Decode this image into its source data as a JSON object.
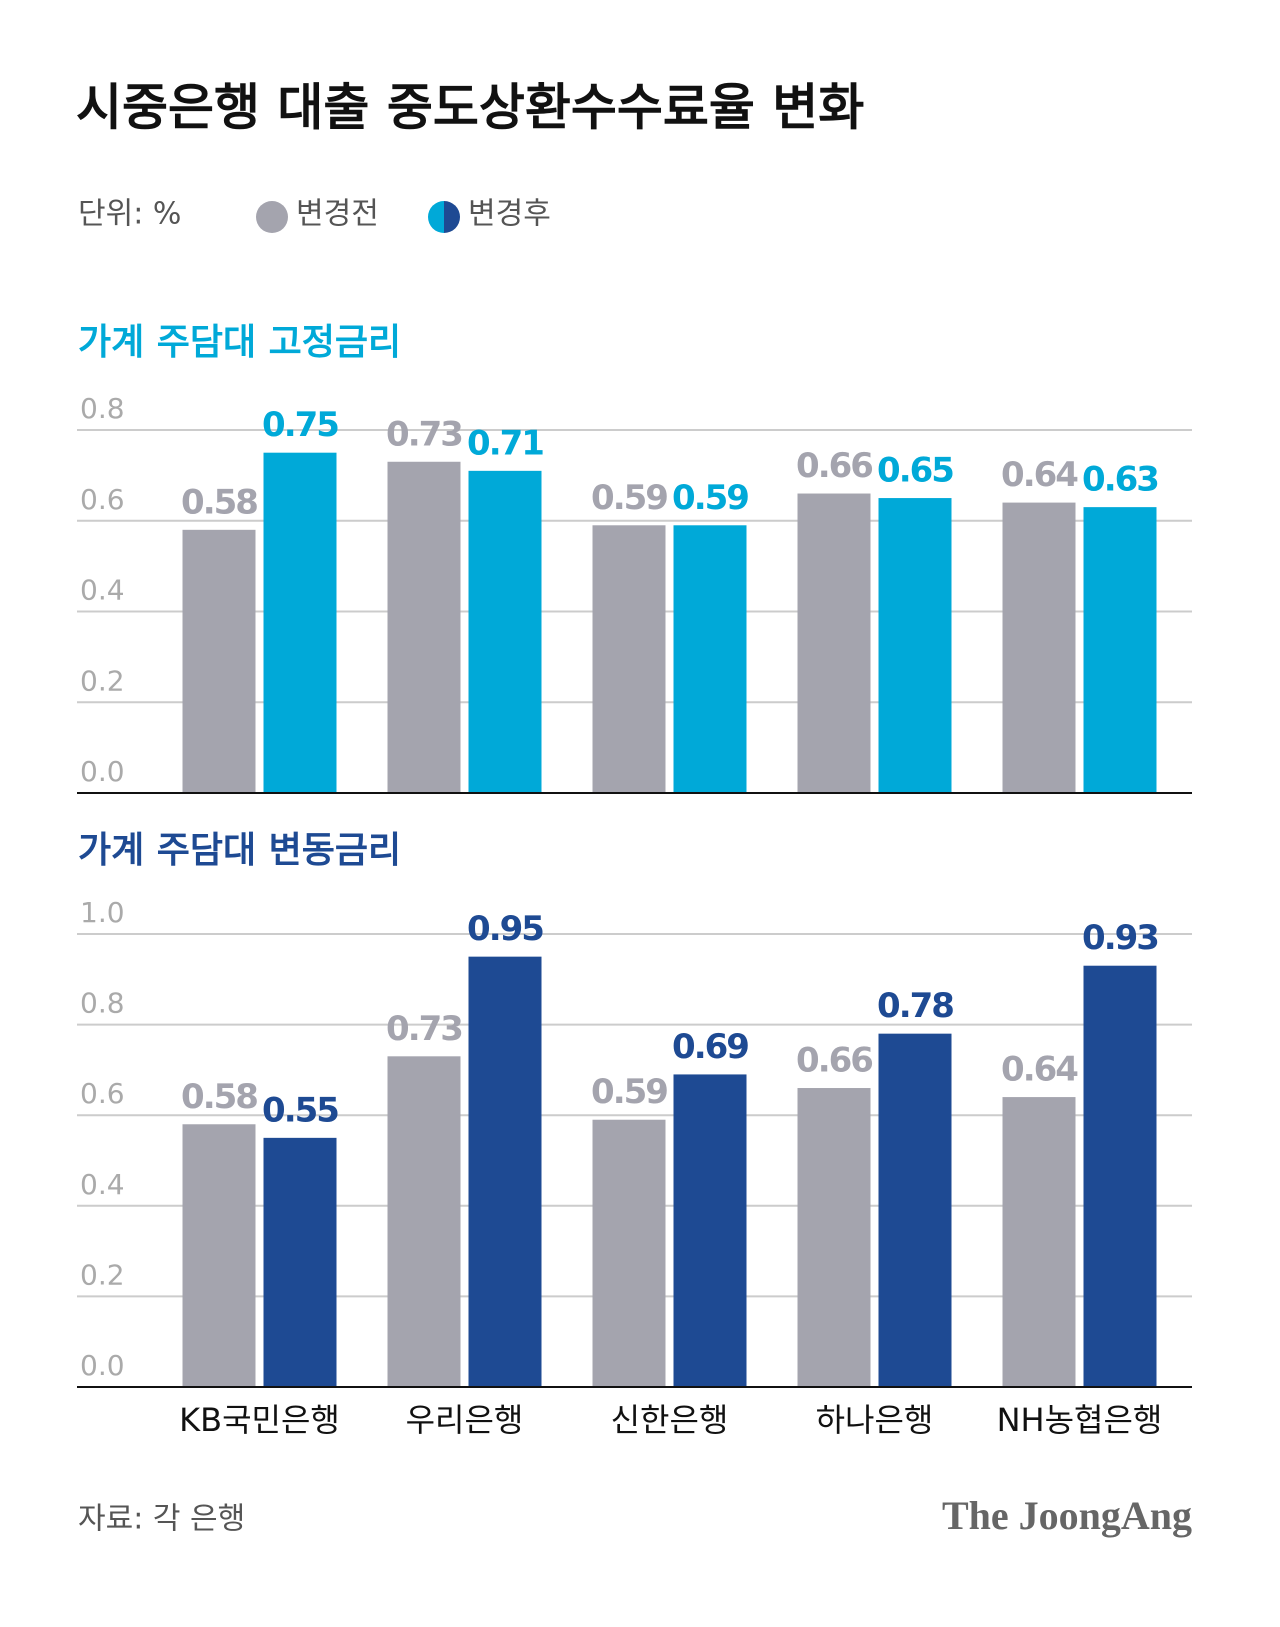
{
  "title": "시중은행 대출 중도상환수수료율 변화",
  "unit": "단위: %",
  "source": "자료: 각 은행",
  "logo": "The JoongAng",
  "chart_data": [
    {
      "type": "bar",
      "title": "가계 주담대 고정금리",
      "series": [
        {
          "name": "변경전",
          "color": "#a4a4ae",
          "values": [
            0.58,
            0.73,
            0.59,
            0.66,
            0.64
          ]
        },
        {
          "name": "변경후",
          "color": "#00a9d8",
          "values": [
            0.75,
            0.71,
            0.59,
            0.65,
            0.63
          ]
        }
      ],
      "ylim": [
        0,
        0.8
      ],
      "yticks": [
        {
          "value": 0,
          "label": "0.0"
        },
        0.2,
        0.4,
        0.6,
        0.8
      ],
      "grid": true
    },
    {
      "type": "bar",
      "title": "가계 주담대 변동금리",
      "categories": [
        "KB국민은행",
        "우리은행",
        "신한은행",
        "하나은행",
        "NH농협은행"
      ],
      "series": [
        {
          "color": "#a4a4ae",
          "values": [
            0.58,
            0.73,
            0.59,
            0.66,
            0.64
          ]
        },
        {
          "color": "#1e4a93",
          "values": [
            0.55,
            0.95,
            0.69,
            0.78,
            0.93
          ]
        }
      ],
      "ylim": [
        0,
        1.0
      ],
      "yticks": [
        {
          "value": 0,
          "label": "0.0"
        },
        0.2,
        0.4,
        0.6,
        0.8,
        {
          "value": 1,
          "label": "1.0"
        }
      ],
      "grid": true
    }
  ]
}
